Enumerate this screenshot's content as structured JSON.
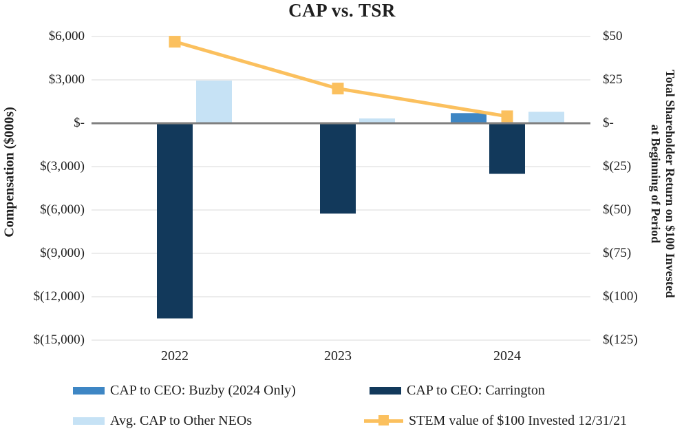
{
  "chart_data": {
    "type": "bar+line combo, dual axis",
    "title": "CAP vs. TSR",
    "categories": [
      "2022",
      "2023",
      "2024"
    ],
    "series": [
      {
        "name": "CAP to CEO: Buzby (2024 Only)",
        "type": "bar",
        "axis": "left",
        "color": "#3E86C4",
        "values": [
          null,
          null,
          700
        ]
      },
      {
        "name": "CAP to CEO: Carrington",
        "type": "bar",
        "axis": "left",
        "color": "#12395B",
        "values": [
          -13500,
          -6250,
          -3500
        ]
      },
      {
        "name": "Avg. CAP to Other NEOs",
        "type": "bar",
        "axis": "left",
        "color": "#C6E2F5",
        "values": [
          2950,
          330,
          790
        ]
      },
      {
        "name": "STEM value of $100 Invested 12/31/21",
        "type": "line",
        "axis": "right",
        "color": "#FBC05E",
        "values": [
          47,
          20,
          4
        ]
      }
    ],
    "axes": {
      "left": {
        "title": "Compensation ($000s)",
        "range": [
          -15000,
          6000
        ],
        "ticks": [
          {
            "label": "$6,000",
            "value": 6000
          },
          {
            "label": "$3,000",
            "value": 3000
          },
          {
            "label": "$-",
            "value": 0
          },
          {
            "label": "$(3,000)",
            "value": -3000
          },
          {
            "label": "$(6,000)",
            "value": -6000
          },
          {
            "label": "$(9,000)",
            "value": -9000
          },
          {
            "label": "$(12,000)",
            "value": -12000
          },
          {
            "label": "$(15,000)",
            "value": -15000
          }
        ]
      },
      "right": {
        "title": "Total Shareholder Return on $100 Invested at Beginning of Period",
        "title_lines": [
          "Total Shareholder Return on $100 Invested",
          "at Beginning of Period"
        ],
        "range": [
          -125,
          50
        ],
        "ticks": [
          {
            "label": "$50",
            "value": 50
          },
          {
            "label": "$25",
            "value": 25
          },
          {
            "label": "$-",
            "value": 0
          },
          {
            "label": "$(25)",
            "value": -25
          },
          {
            "label": "$(50)",
            "value": -50
          },
          {
            "label": "$(75)",
            "value": -75
          },
          {
            "label": "$(100)",
            "value": -100
          },
          {
            "label": "$(125)",
            "value": -125
          }
        ]
      }
    },
    "grid": {
      "gridline_color": "#D9D9D9",
      "zero_line_color": "#7F7F7F"
    },
    "legend_position": "bottom"
  }
}
